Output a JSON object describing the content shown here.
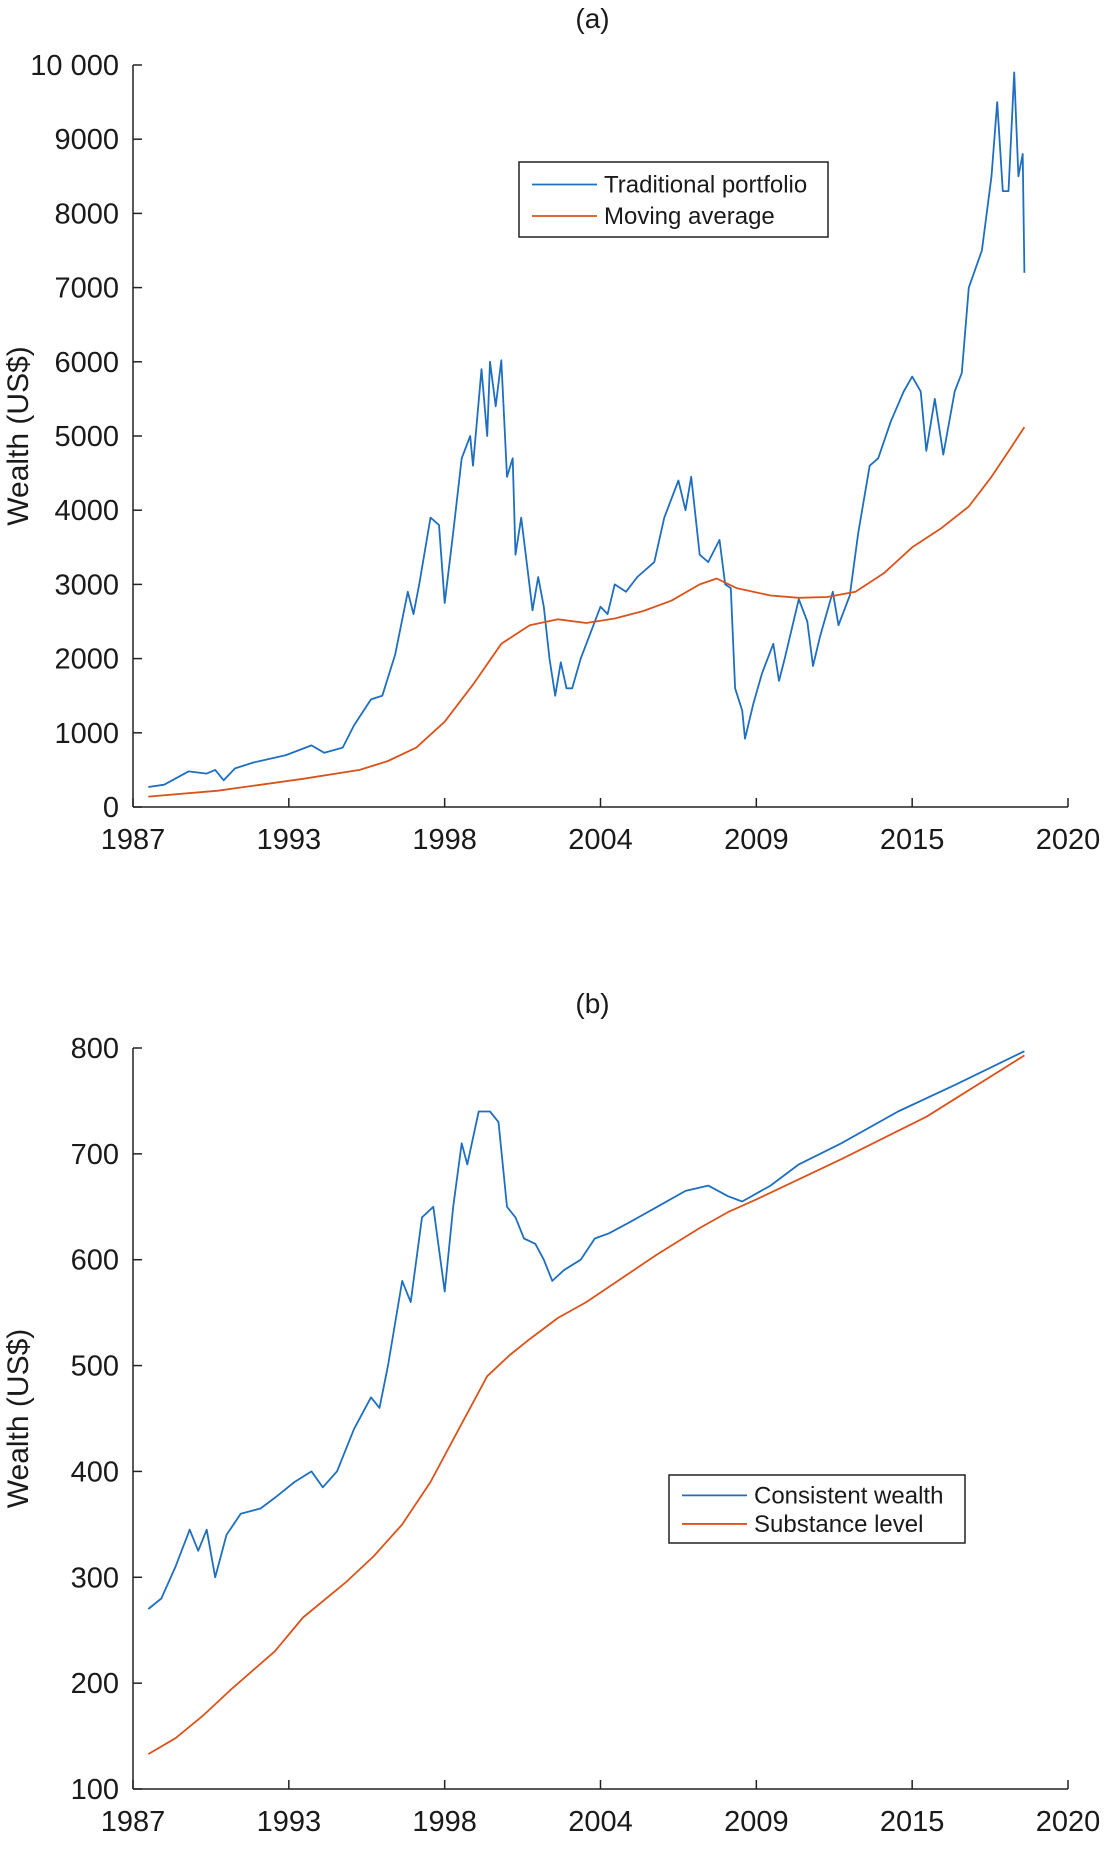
{
  "chart_data": [
    {
      "type": "line",
      "title": "(a)",
      "xlabel": "",
      "ylabel": "Wealth (US$)",
      "xlim": [
        1987,
        2020
      ],
      "ylim": [
        0,
        10000
      ],
      "xticks": [
        1987,
        1992.5,
        1998,
        2003.5,
        2009,
        2014.5,
        2020
      ],
      "xtick_labels": [
        "1987",
        "1993",
        "1998",
        "2004",
        "2009",
        "2015",
        "2020"
      ],
      "yticks": [
        0,
        1000,
        2000,
        3000,
        4000,
        5000,
        6000,
        7000,
        8000,
        9000,
        10000
      ],
      "ytick_labels": [
        "0",
        "1000",
        "2000",
        "3000",
        "4000",
        "5000",
        "6000",
        "7000",
        "8000",
        "9000",
        "10 000"
      ],
      "grid": false,
      "legend_position": "top-center",
      "series": [
        {
          "name": "Traditional portfolio",
          "color": "#1f6fc0",
          "x": [
            1987.54,
            1988.1,
            1988.96,
            1989.6,
            1989.9,
            1990.2,
            1990.6,
            1991.25,
            1992.4,
            1993.3,
            1993.75,
            1994.4,
            1994.8,
            1995.4,
            1995.8,
            1996.25,
            1996.7,
            1996.9,
            1997.1,
            1997.5,
            1997.8,
            1998.0,
            1998.3,
            1998.6,
            1998.9,
            1999.0,
            1999.3,
            1999.5,
            1999.6,
            1999.8,
            2000.0,
            2000.2,
            2000.4,
            2000.5,
            2000.7,
            2000.96,
            2001.1,
            2001.3,
            2001.5,
            2001.7,
            2001.9,
            2002.1,
            2002.3,
            2002.5,
            2002.8,
            2003.1,
            2003.5,
            2003.75,
            2004.0,
            2004.4,
            2004.8,
            2005.4,
            2005.75,
            2006.25,
            2006.5,
            2006.7,
            2007.0,
            2007.3,
            2007.7,
            2007.9,
            2008.1,
            2008.25,
            2008.5,
            2008.6,
            2008.9,
            2009.2,
            2009.6,
            2009.8,
            2010.0,
            2010.5,
            2010.8,
            2011.0,
            2011.25,
            2011.7,
            2011.9,
            2012.3,
            2012.6,
            2013.0,
            2013.3,
            2013.75,
            2014.2,
            2014.5,
            2014.8,
            2015.0,
            2015.3,
            2015.6,
            2016.0,
            2016.25,
            2016.5,
            2016.96,
            2017.3,
            2017.5,
            2017.7,
            2017.9,
            2018.1,
            2018.25,
            2018.4,
            2018.46
          ],
          "y": [
            270,
            300,
            480,
            450,
            500,
            360,
            520,
            600,
            700,
            830,
            730,
            800,
            1100,
            1450,
            1500,
            2050,
            2900,
            2600,
            3000,
            3900,
            3800,
            2750,
            3700,
            4700,
            5000,
            4600,
            5900,
            5000,
            6000,
            5400,
            6020,
            4450,
            4700,
            3400,
            3900,
            3100,
            2650,
            3100,
            2700,
            2000,
            1500,
            1950,
            1600,
            1600,
            2000,
            2300,
            2700,
            2600,
            3000,
            2900,
            3100,
            3300,
            3900,
            4400,
            4000,
            4450,
            3400,
            3300,
            3600,
            3000,
            2950,
            1600,
            1300,
            920,
            1400,
            1800,
            2200,
            1700,
            2000,
            2800,
            2500,
            1900,
            2300,
            2900,
            2450,
            2850,
            3700,
            4600,
            4700,
            5200,
            5600,
            5800,
            5600,
            4800,
            5500,
            4750,
            5600,
            5850,
            7000,
            7500,
            8500,
            9500,
            8300,
            8300,
            9900,
            8500,
            8800,
            7200
          ]
        },
        {
          "name": "Moving average",
          "color": "#d9531a",
          "x": [
            1987.54,
            1990,
            1993,
            1995,
            1996,
            1997,
            1998,
            1999,
            2000,
            2001,
            2002,
            2003,
            2004,
            2005,
            2006,
            2007,
            2007.6,
            2008.3,
            2009.5,
            2010.5,
            2011.5,
            2012.5,
            2013.5,
            2014.5,
            2015.5,
            2016.5,
            2017.3,
            2018,
            2018.46
          ],
          "y": [
            140,
            220,
            380,
            500,
            620,
            800,
            1150,
            1650,
            2200,
            2450,
            2530,
            2480,
            2540,
            2640,
            2780,
            3000,
            3080,
            2950,
            2850,
            2820,
            2830,
            2900,
            3150,
            3500,
            3750,
            4050,
            4450,
            4850,
            5120
          ]
        }
      ]
    },
    {
      "type": "line",
      "title": "(b)",
      "xlabel": "",
      "ylabel": "Wealth (US$)",
      "xlim": [
        1987,
        2020
      ],
      "ylim": [
        100,
        800
      ],
      "xticks": [
        1987,
        1992.5,
        1998,
        2003.5,
        2009,
        2014.5,
        2020
      ],
      "xtick_labels": [
        "1987",
        "1993",
        "1998",
        "2004",
        "2009",
        "2015",
        "2020"
      ],
      "yticks": [
        100,
        200,
        300,
        400,
        500,
        600,
        700,
        800
      ],
      "ytick_labels": [
        "100",
        "200",
        "300",
        "400",
        "500",
        "600",
        "700",
        "800"
      ],
      "grid": false,
      "legend_position": "center-right",
      "series": [
        {
          "name": "Consistent wealth",
          "color": "#1f6fc0",
          "x": [
            1987.54,
            1988,
            1988.5,
            1989,
            1989.3,
            1989.6,
            1989.9,
            1990.3,
            1990.8,
            1991.5,
            1992,
            1992.7,
            1993.3,
            1993.7,
            1994.2,
            1994.8,
            1995.4,
            1995.7,
            1996.0,
            1996.5,
            1996.8,
            1997.2,
            1997.6,
            1998,
            1998.3,
            1998.6,
            1998.8,
            1999.2,
            1999.6,
            1999.9,
            2000.2,
            2000.5,
            2000.8,
            2001.2,
            2001.5,
            2001.8,
            2002.2,
            2002.8,
            2003.3,
            2003.8,
            2004.5,
            2005.5,
            2006.5,
            2007.3,
            2008,
            2008.5,
            2009.5,
            2010.5,
            2012,
            2014,
            2016,
            2018.46
          ],
          "y": [
            270,
            280,
            310,
            345,
            325,
            345,
            300,
            340,
            360,
            365,
            375,
            390,
            400,
            385,
            400,
            440,
            470,
            460,
            500,
            580,
            560,
            640,
            650,
            570,
            650,
            710,
            690,
            740,
            740,
            730,
            650,
            640,
            620,
            615,
            600,
            580,
            590,
            600,
            620,
            625,
            635,
            650,
            665,
            670,
            660,
            655,
            670,
            690,
            710,
            740,
            765,
            797
          ]
        },
        {
          "name": "Substance level",
          "color": "#d9531a",
          "x": [
            1987.54,
            1988.5,
            1989.5,
            1990.5,
            1992,
            1993,
            1994.5,
            1995.5,
            1996.5,
            1997.5,
            1998.5,
            1999.5,
            2000.3,
            2001,
            2002,
            2003,
            2004,
            2005.5,
            2007,
            2008,
            2009,
            2012,
            2015,
            2018.46
          ],
          "y": [
            133,
            148,
            170,
            195,
            230,
            262,
            295,
            320,
            350,
            390,
            440,
            490,
            510,
            525,
            545,
            560,
            578,
            605,
            630,
            645,
            657,
            695,
            735,
            793
          ]
        }
      ]
    }
  ]
}
